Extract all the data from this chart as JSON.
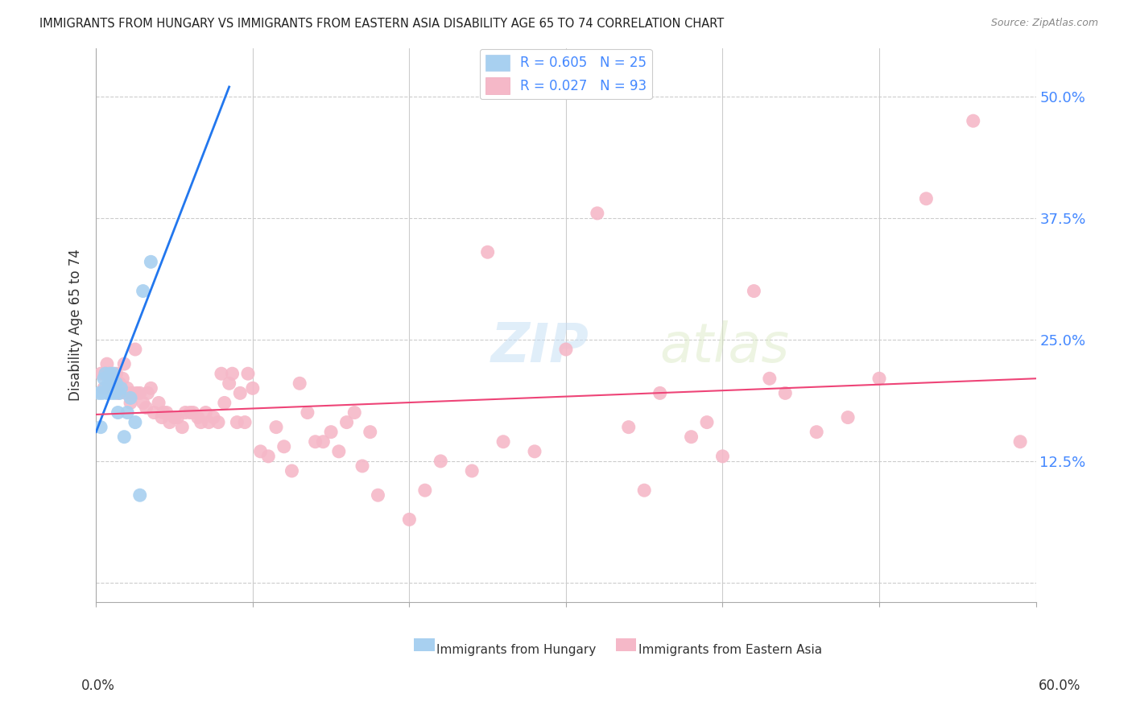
{
  "title": "IMMIGRANTS FROM HUNGARY VS IMMIGRANTS FROM EASTERN ASIA DISABILITY AGE 65 TO 74 CORRELATION CHART",
  "source": "Source: ZipAtlas.com",
  "ylabel": "Disability Age 65 to 74",
  "xlim": [
    0.0,
    0.6
  ],
  "ylim": [
    -0.02,
    0.55
  ],
  "watermark_zip": "ZIP",
  "watermark_atlas": "atlas",
  "hungary_color": "#a8d0f0",
  "eastern_asia_color": "#f5b8c8",
  "hungary_line_color": "#2277ee",
  "eastern_asia_line_color": "#ee4477",
  "hungary_scatter_x": [
    0.002,
    0.003,
    0.004,
    0.005,
    0.006,
    0.006,
    0.007,
    0.008,
    0.008,
    0.009,
    0.01,
    0.01,
    0.011,
    0.012,
    0.013,
    0.014,
    0.015,
    0.016,
    0.018,
    0.02,
    0.022,
    0.025,
    0.028,
    0.03,
    0.035
  ],
  "hungary_scatter_y": [
    0.195,
    0.16,
    0.195,
    0.21,
    0.215,
    0.2,
    0.195,
    0.205,
    0.195,
    0.215,
    0.2,
    0.195,
    0.215,
    0.195,
    0.205,
    0.175,
    0.195,
    0.2,
    0.15,
    0.175,
    0.19,
    0.165,
    0.09,
    0.3,
    0.33
  ],
  "hungary_line_x": [
    0.0,
    0.085
  ],
  "hungary_line_y": [
    0.155,
    0.51
  ],
  "eastern_asia_line_x": [
    0.0,
    0.6
  ],
  "eastern_asia_line_y": [
    0.173,
    0.21
  ],
  "eastern_asia_scatter_x": [
    0.003,
    0.005,
    0.006,
    0.007,
    0.008,
    0.009,
    0.01,
    0.011,
    0.012,
    0.013,
    0.014,
    0.015,
    0.016,
    0.017,
    0.018,
    0.019,
    0.02,
    0.022,
    0.023,
    0.025,
    0.026,
    0.028,
    0.03,
    0.032,
    0.033,
    0.035,
    0.037,
    0.04,
    0.042,
    0.043,
    0.045,
    0.047,
    0.05,
    0.052,
    0.055,
    0.057,
    0.06,
    0.062,
    0.065,
    0.067,
    0.07,
    0.072,
    0.075,
    0.078,
    0.08,
    0.082,
    0.085,
    0.087,
    0.09,
    0.092,
    0.095,
    0.097,
    0.1,
    0.105,
    0.11,
    0.115,
    0.12,
    0.125,
    0.13,
    0.135,
    0.14,
    0.145,
    0.15,
    0.155,
    0.16,
    0.165,
    0.17,
    0.175,
    0.18,
    0.2,
    0.21,
    0.22,
    0.24,
    0.25,
    0.26,
    0.28,
    0.3,
    0.32,
    0.34,
    0.35,
    0.36,
    0.38,
    0.39,
    0.4,
    0.42,
    0.43,
    0.44,
    0.46,
    0.48,
    0.5,
    0.53,
    0.56,
    0.59
  ],
  "eastern_asia_scatter_y": [
    0.215,
    0.2,
    0.215,
    0.225,
    0.215,
    0.205,
    0.21,
    0.215,
    0.205,
    0.215,
    0.195,
    0.205,
    0.2,
    0.21,
    0.225,
    0.195,
    0.2,
    0.185,
    0.195,
    0.24,
    0.195,
    0.195,
    0.185,
    0.18,
    0.195,
    0.2,
    0.175,
    0.185,
    0.17,
    0.175,
    0.175,
    0.165,
    0.17,
    0.17,
    0.16,
    0.175,
    0.175,
    0.175,
    0.17,
    0.165,
    0.175,
    0.165,
    0.17,
    0.165,
    0.215,
    0.185,
    0.205,
    0.215,
    0.165,
    0.195,
    0.165,
    0.215,
    0.2,
    0.135,
    0.13,
    0.16,
    0.14,
    0.115,
    0.205,
    0.175,
    0.145,
    0.145,
    0.155,
    0.135,
    0.165,
    0.175,
    0.12,
    0.155,
    0.09,
    0.065,
    0.095,
    0.125,
    0.115,
    0.34,
    0.145,
    0.135,
    0.24,
    0.38,
    0.16,
    0.095,
    0.195,
    0.15,
    0.165,
    0.13,
    0.3,
    0.21,
    0.195,
    0.155,
    0.17,
    0.21,
    0.395,
    0.475,
    0.145
  ],
  "ytick_positions": [
    0.0,
    0.125,
    0.25,
    0.375,
    0.5
  ],
  "ytick_labels": [
    "",
    "12.5%",
    "25.0%",
    "37.5%",
    "50.0%"
  ],
  "xtick_positions": [
    0.0,
    0.1,
    0.2,
    0.3,
    0.4,
    0.5,
    0.6
  ],
  "grid_color": "#cccccc",
  "legend_hungary_label": "R = 0.605   N = 25",
  "legend_eastern_label": "R = 0.027   N = 93",
  "bottom_legend_hungary": "Immigrants from Hungary",
  "bottom_legend_eastern": "Immigrants from Eastern Asia"
}
